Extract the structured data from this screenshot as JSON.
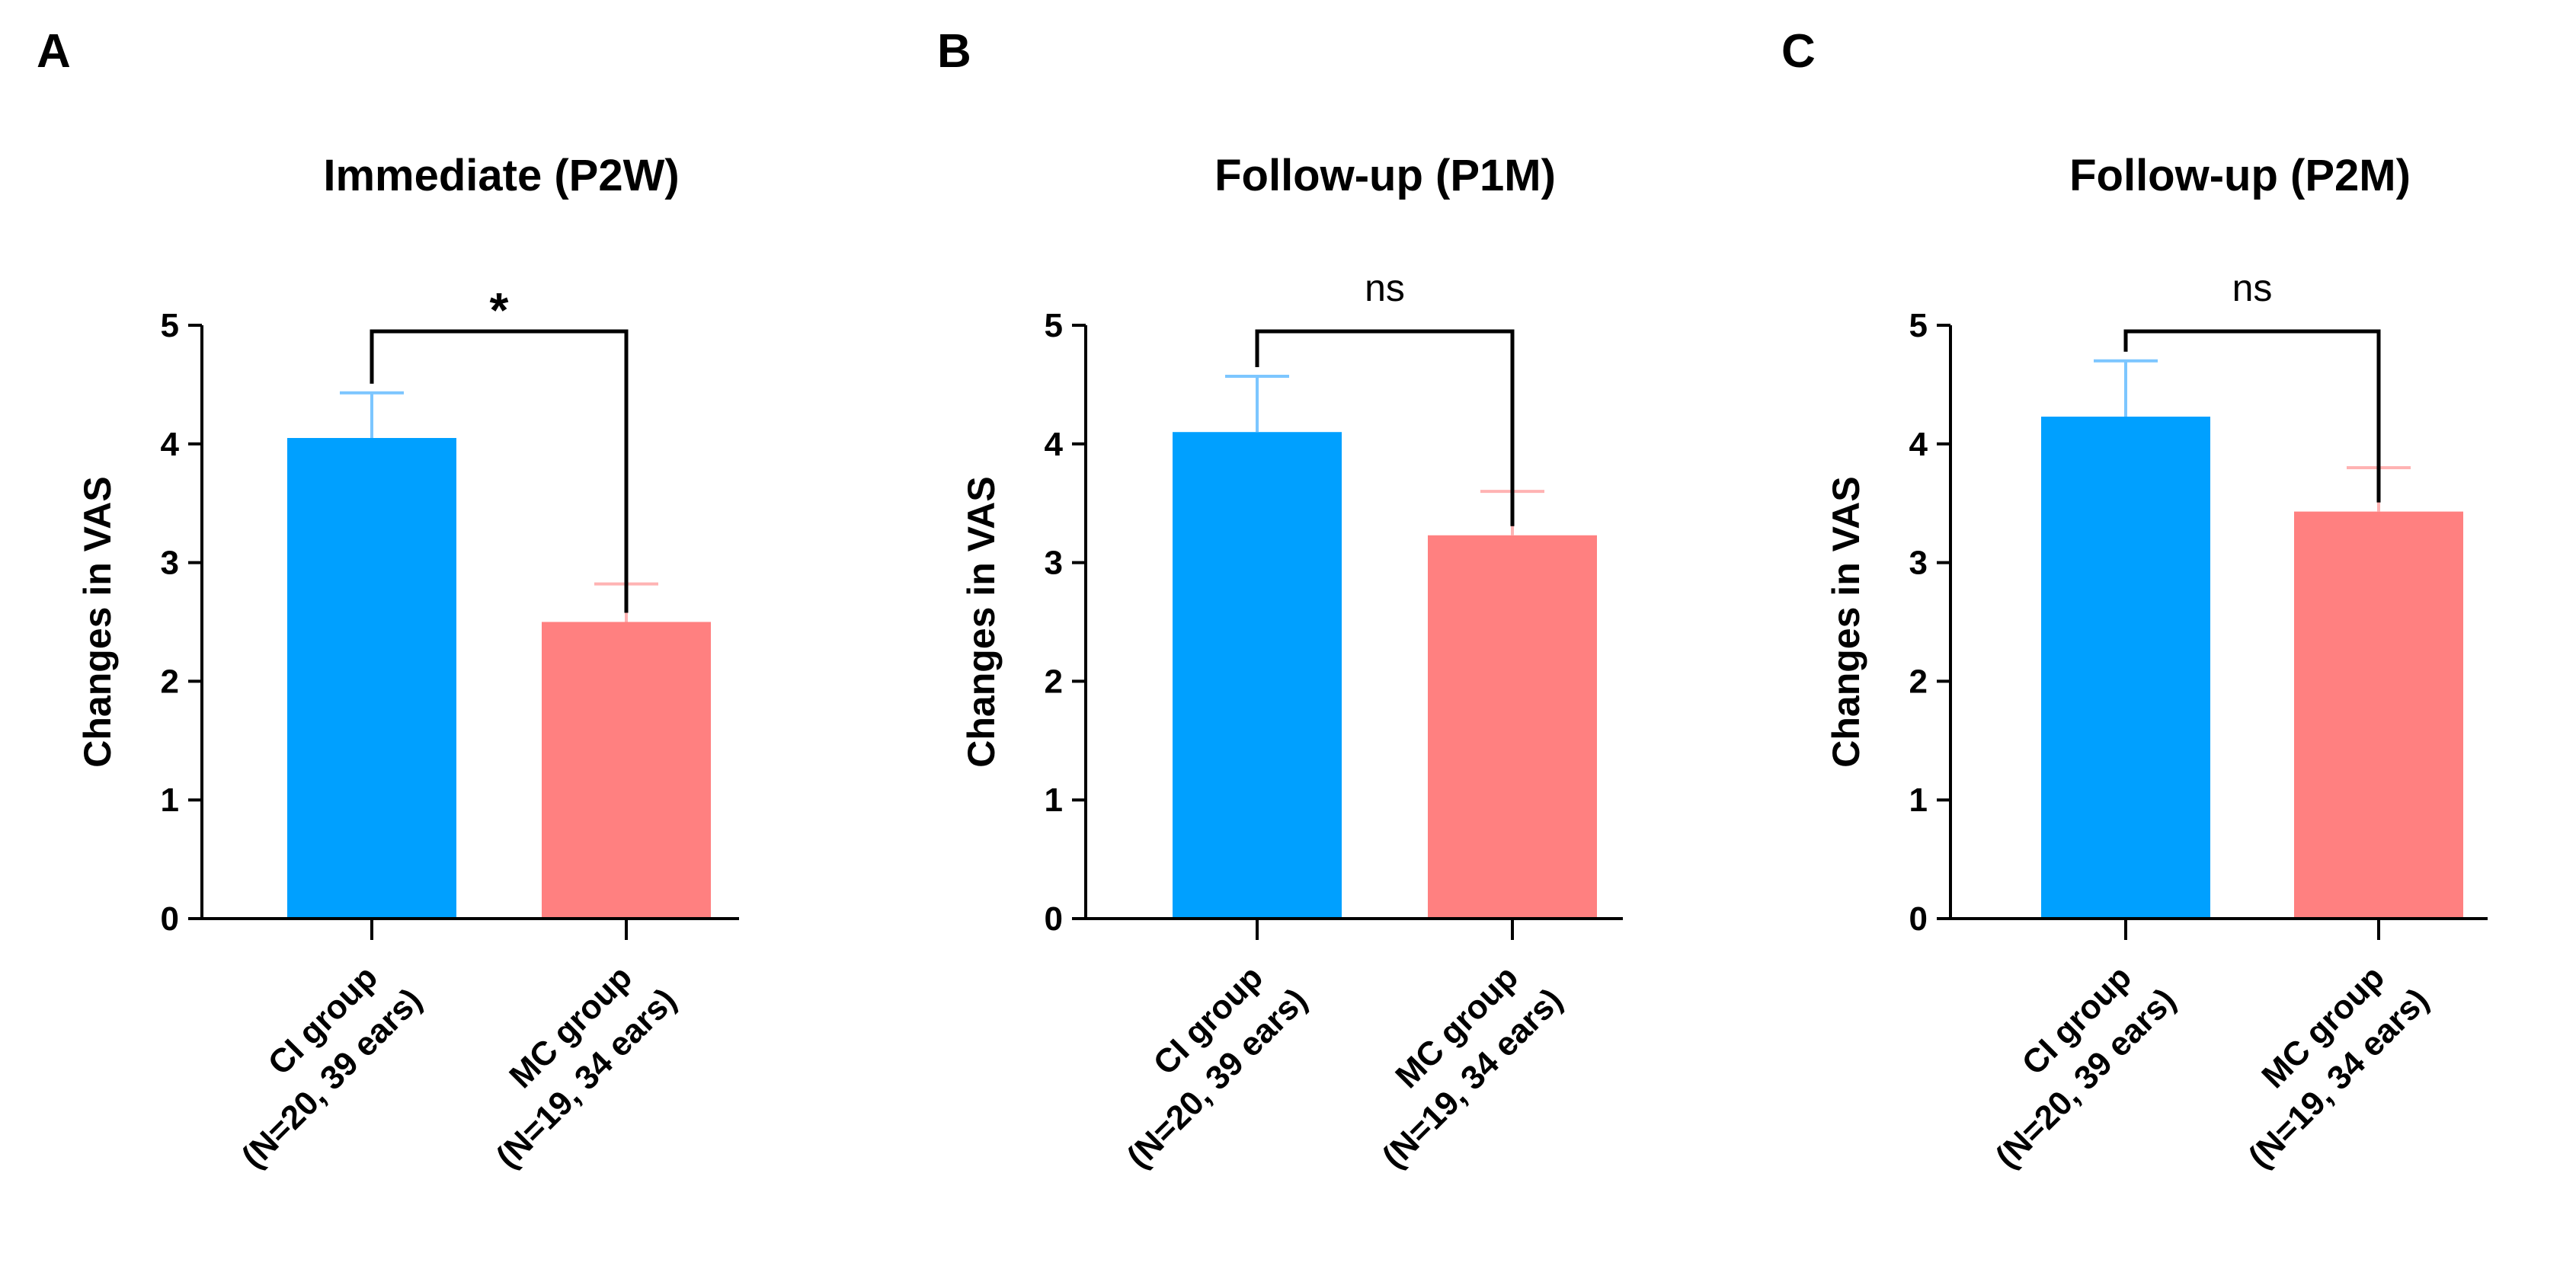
{
  "chart_data": [
    {
      "panel": "A",
      "type": "bar",
      "title": "Immediate (P2W)",
      "ylabel": "Changes in VAS",
      "ylim": [
        0,
        5
      ],
      "yticks": [
        "0",
        "1",
        "2",
        "3",
        "4",
        "5"
      ],
      "categories": [
        {
          "line1": "CI group",
          "line2": "(N=20, 39 ears)"
        },
        {
          "line1": "MC group",
          "line2": "(N=19, 34 ears)"
        }
      ],
      "values": [
        4.05,
        2.5
      ],
      "error_upper": [
        4.43,
        2.82
      ],
      "colors": [
        "#00a0ff",
        "#ff8080"
      ],
      "error_colors": [
        "#7cc6ff",
        "#ffb3b3"
      ],
      "significance": "*"
    },
    {
      "panel": "B",
      "type": "bar",
      "title": "Follow-up (P1M)",
      "ylabel": "Changes in VAS",
      "ylim": [
        0,
        5
      ],
      "yticks": [
        "0",
        "1",
        "2",
        "3",
        "4",
        "5"
      ],
      "categories": [
        {
          "line1": "CI group",
          "line2": "(N=20, 39 ears)"
        },
        {
          "line1": "MC group",
          "line2": "(N=19, 34 ears)"
        }
      ],
      "values": [
        4.1,
        3.23
      ],
      "error_upper": [
        4.57,
        3.6
      ],
      "colors": [
        "#00a0ff",
        "#ff8080"
      ],
      "error_colors": [
        "#7cc6ff",
        "#ffb3b3"
      ],
      "significance": "ns"
    },
    {
      "panel": "C",
      "type": "bar",
      "title": "Follow-up (P2M)",
      "ylabel": "Changes in VAS",
      "ylim": [
        0,
        5
      ],
      "yticks": [
        "0",
        "1",
        "2",
        "3",
        "4",
        "5"
      ],
      "categories": [
        {
          "line1": "CI group",
          "line2": "(N=20, 39 ears)"
        },
        {
          "line1": "MC group",
          "line2": "(N=19, 34 ears)"
        }
      ],
      "values": [
        4.23,
        3.43
      ],
      "error_upper": [
        4.7,
        3.8
      ],
      "colors": [
        "#00a0ff",
        "#ff8080"
      ],
      "error_colors": [
        "#7cc6ff",
        "#ffb3b3"
      ],
      "significance": "ns"
    }
  ]
}
